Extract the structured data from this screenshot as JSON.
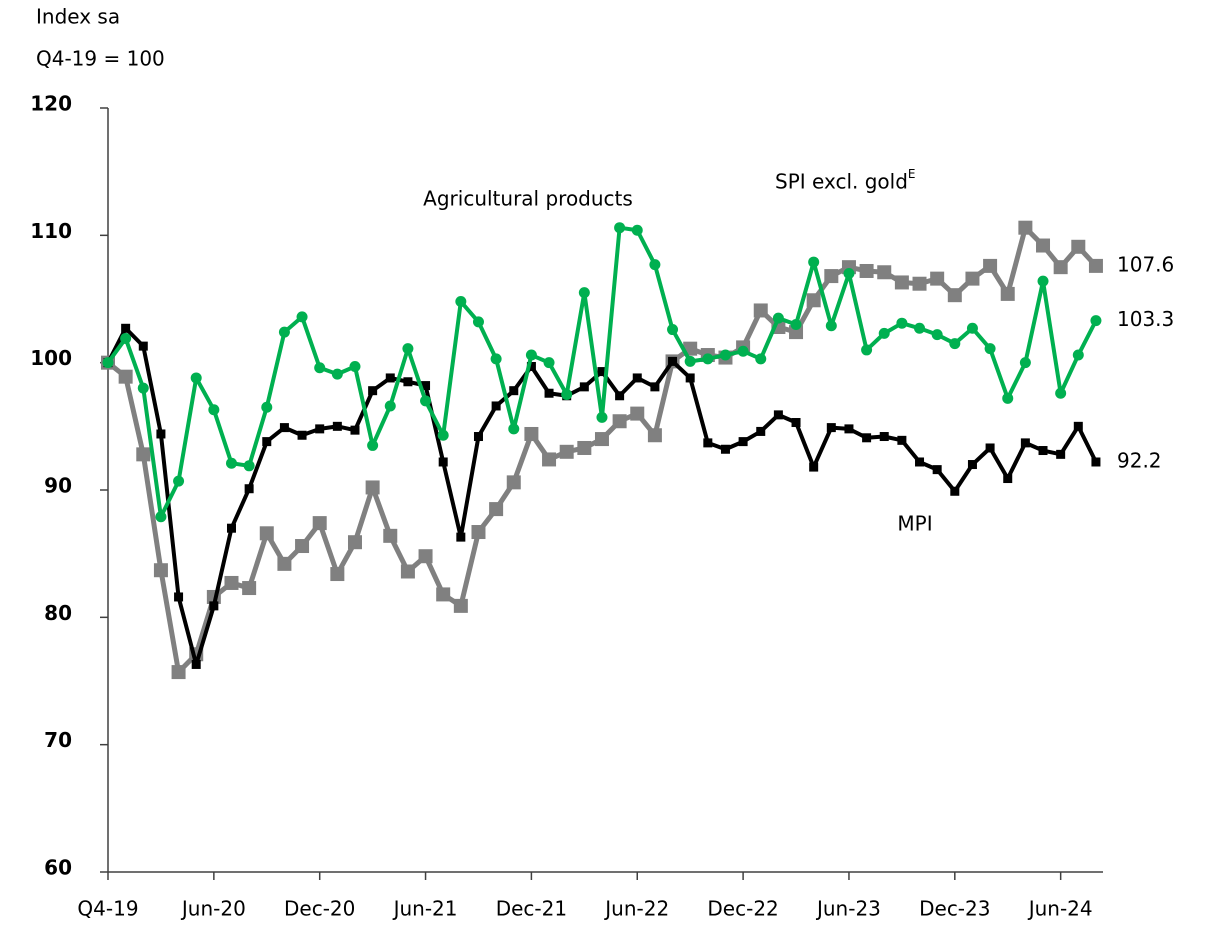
{
  "chart_data": {
    "type": "line",
    "y_title": [
      "Index sa",
      "Q4-19 = 100"
    ],
    "x": [
      0,
      1,
      2,
      3,
      4,
      5,
      6,
      7,
      8,
      9,
      10,
      11,
      12,
      13,
      14,
      15,
      16,
      17,
      18,
      19,
      20,
      21,
      22,
      23,
      24,
      25,
      26,
      27,
      28,
      29,
      30,
      31,
      32,
      33,
      34,
      35,
      36,
      37,
      38,
      39,
      40,
      41,
      42,
      43,
      44,
      45,
      46,
      47,
      48,
      49,
      50,
      51,
      52,
      53,
      54,
      55,
      56
    ],
    "xlim": [
      0,
      56.4
    ],
    "xticks": [
      {
        "value": 0,
        "label": "Q4-19"
      },
      {
        "value": 6,
        "label": "Jun-20"
      },
      {
        "value": 12,
        "label": "Dec-20"
      },
      {
        "value": 18,
        "label": "Jun-21"
      },
      {
        "value": 24,
        "label": "Dec-21"
      },
      {
        "value": 30,
        "label": "Jun-22"
      },
      {
        "value": 36,
        "label": "Dec-22"
      },
      {
        "value": 42,
        "label": "Jun-23"
      },
      {
        "value": 48,
        "label": "Dec-23"
      },
      {
        "value": 54,
        "label": "Jun-24"
      }
    ],
    "ylim": [
      60,
      120
    ],
    "yticks": [
      60,
      70,
      80,
      90,
      100,
      110,
      120
    ],
    "series": [
      {
        "name": "SPI excl. gold",
        "name_superscript": "E",
        "color": "#808080",
        "marker": "square",
        "values": [
          100,
          98.9,
          92.8,
          83.7,
          75.7,
          77.1,
          81.6,
          82.7,
          82.3,
          86.6,
          84.2,
          85.6,
          87.4,
          83.4,
          85.9,
          90.2,
          86.4,
          83.6,
          84.8,
          81.8,
          80.9,
          86.7,
          88.5,
          90.6,
          94.4,
          92.4,
          93.0,
          93.3,
          94.0,
          95.4,
          96.0,
          94.3,
          100.1,
          101.1,
          100.6,
          100.4,
          101.2,
          104.1,
          102.8,
          102.4,
          104.9,
          106.8,
          107.5,
          107.2,
          107.1,
          106.3,
          106.2,
          106.6,
          105.3,
          106.6,
          107.6,
          105.4,
          110.6,
          109.2,
          107.5,
          109.1,
          107.6
        ]
      },
      {
        "name": "MPI",
        "color": "#000000",
        "marker": "square-small",
        "values": [
          100,
          102.7,
          101.3,
          94.4,
          81.6,
          76.3,
          80.9,
          87.0,
          90.1,
          93.8,
          94.9,
          94.3,
          94.8,
          95.0,
          94.7,
          97.8,
          98.8,
          98.5,
          98.2,
          92.2,
          86.3,
          94.2,
          96.6,
          97.8,
          99.7,
          97.6,
          97.4,
          98.1,
          99.3,
          97.4,
          98.8,
          98.1,
          100.1,
          98.8,
          93.7,
          93.2,
          93.8,
          94.6,
          95.9,
          95.3,
          91.8,
          94.9,
          94.8,
          94.1,
          94.2,
          93.9,
          92.2,
          91.6,
          89.9,
          92.0,
          93.3,
          90.9,
          93.7,
          93.1,
          92.8,
          95.0,
          92.2
        ]
      },
      {
        "name": "Agricultural products",
        "color": "#00b050",
        "marker": "circle",
        "values": [
          100,
          101.9,
          98.0,
          87.9,
          90.7,
          98.8,
          96.3,
          92.1,
          91.9,
          96.5,
          102.4,
          103.6,
          99.6,
          99.1,
          99.7,
          93.5,
          96.6,
          101.1,
          97.0,
          94.3,
          104.8,
          103.2,
          100.3,
          94.8,
          100.6,
          100.0,
          97.5,
          105.5,
          95.7,
          110.6,
          110.4,
          107.7,
          102.6,
          100.1,
          100.3,
          100.6,
          100.9,
          100.3,
          103.5,
          103.0,
          107.9,
          102.9,
          107.0,
          101.0,
          102.3,
          103.1,
          102.7,
          102.2,
          101.5,
          102.7,
          101.1,
          97.2,
          100.0,
          106.4,
          97.6,
          100.6,
          103.3
        ]
      }
    ]
  }
}
